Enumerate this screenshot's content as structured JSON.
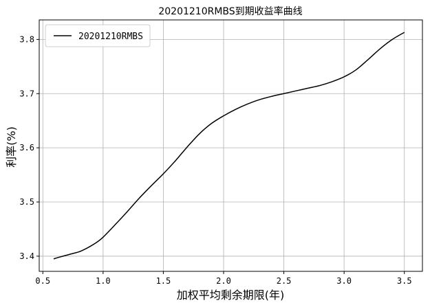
{
  "chart_data": {
    "type": "line",
    "title": "20201210RMBS到期收益率曲线",
    "xlabel": "加权平均剩余期限(年)",
    "ylabel": "利率(%)",
    "xlim": [
      0.47,
      3.65
    ],
    "ylim": [
      3.372,
      3.836
    ],
    "xticks": [
      0.5,
      1.0,
      1.5,
      2.0,
      2.5,
      3.0,
      3.5
    ],
    "xtick_labels": [
      "0.5",
      "1.0",
      "1.5",
      "2.0",
      "2.5",
      "3.0",
      "3.5"
    ],
    "yticks": [
      3.4,
      3.5,
      3.6,
      3.7,
      3.8
    ],
    "ytick_labels": [
      "3.4",
      "3.5",
      "3.6",
      "3.7",
      "3.8"
    ],
    "grid": true,
    "legend_position": "top-left",
    "series": [
      {
        "name": "20201210RMBS",
        "color": "#000000",
        "x": [
          0.59,
          0.65,
          0.7,
          0.75,
          0.8,
          0.85,
          0.9,
          0.95,
          1.0,
          1.1,
          1.2,
          1.3,
          1.4,
          1.5,
          1.6,
          1.7,
          1.8,
          1.9,
          2.0,
          2.1,
          2.2,
          2.3,
          2.4,
          2.5,
          2.6,
          2.7,
          2.8,
          2.9,
          3.0,
          3.1,
          3.2,
          3.3,
          3.4,
          3.5
        ],
        "y": [
          3.395,
          3.399,
          3.402,
          3.405,
          3.408,
          3.413,
          3.419,
          3.426,
          3.435,
          3.458,
          3.482,
          3.507,
          3.53,
          3.552,
          3.576,
          3.602,
          3.626,
          3.645,
          3.659,
          3.671,
          3.681,
          3.689,
          3.695,
          3.7,
          3.705,
          3.71,
          3.715,
          3.722,
          3.731,
          3.744,
          3.763,
          3.783,
          3.8,
          3.813
        ]
      }
    ]
  }
}
